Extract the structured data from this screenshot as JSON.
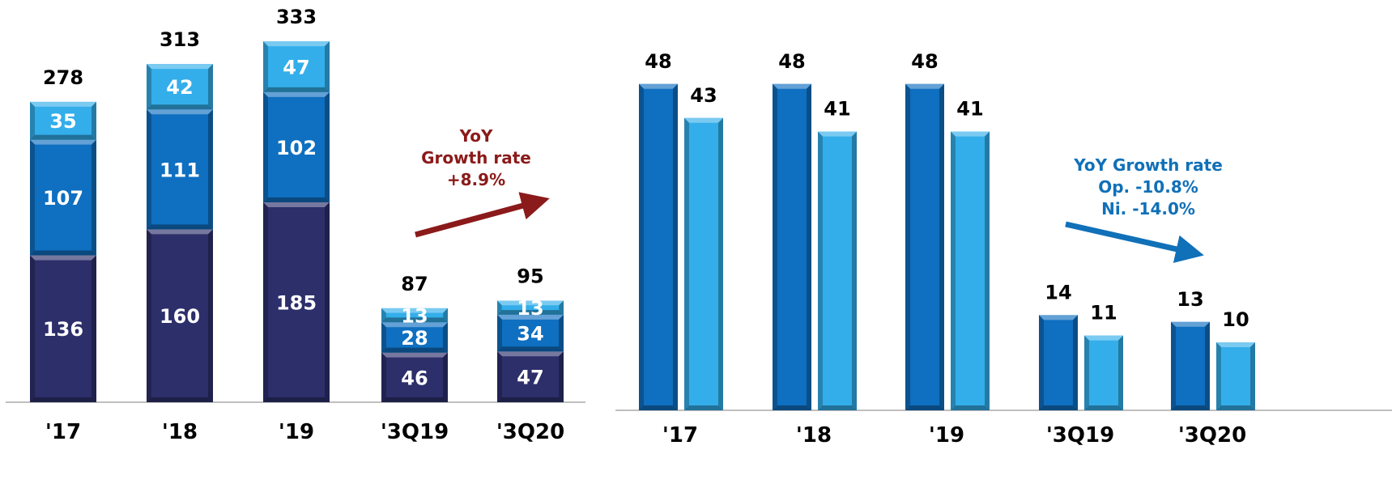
{
  "chart_data": [
    {
      "type": "bar",
      "stacked": true,
      "categories": [
        "'17",
        "'18",
        "'19",
        "'3Q19",
        "'3Q20"
      ],
      "series": [
        {
          "values": [
            136,
            160,
            185,
            46,
            47
          ],
          "color": "#2d2f6b"
        },
        {
          "values": [
            107,
            111,
            102,
            28,
            34
          ],
          "color": "#0f6fc0"
        },
        {
          "values": [
            35,
            42,
            47,
            13,
            13
          ],
          "color": "#33aeea"
        }
      ],
      "totals": [
        278,
        313,
        333,
        87,
        95
      ],
      "annotation": {
        "lines": [
          "YoY",
          "Growth rate",
          "+8.9%"
        ],
        "color": "#8b1a1a"
      }
    },
    {
      "type": "bar",
      "categories": [
        "'17",
        "'18",
        "'19",
        "'3Q19",
        "'3Q20"
      ],
      "series": [
        {
          "values": [
            48,
            48,
            48,
            14,
            13
          ],
          "color": "#0f6fc0"
        },
        {
          "values": [
            43,
            41,
            41,
            11,
            10
          ],
          "color": "#33aeea"
        }
      ],
      "annotation": {
        "lines": [
          "YoY Growth rate",
          "Op. -10.8%",
          "Ni. -14.0%"
        ],
        "color": "#1070b8"
      }
    }
  ]
}
